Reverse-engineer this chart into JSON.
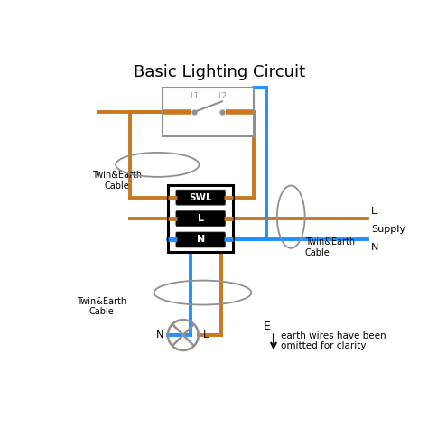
{
  "title": "Basic Lighting Circuit",
  "title_fontsize": 13,
  "brown_color": "#c87820",
  "blue_color": "#1e90ff",
  "gray_color": "#909090",
  "black_color": "#000000",
  "white_color": "#ffffff",
  "bg_color": "#ffffff",
  "line_width": 2.8,
  "earth_note1": "earth wires have been",
  "earth_note2": "omitted for clarity"
}
